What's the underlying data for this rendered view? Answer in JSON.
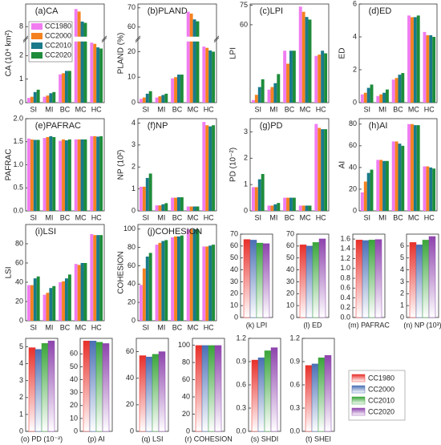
{
  "chart_data": [
    {
      "type": "bar",
      "title": "(a)CA",
      "ylabel": "CA (10⁴ km²)",
      "categories": [
        "SI",
        "MI",
        "BC",
        "MC",
        "HC"
      ],
      "ylim": [
        0,
        8.9
      ],
      "ybreak": [
        2.6,
        7.6
      ],
      "yticks": [
        0,
        1,
        2,
        8
      ],
      "series": [
        {
          "name": "CC1980",
          "color": "#f07cf0",
          "values": [
            0.2,
            0.25,
            1.2,
            8.7,
            2.55
          ]
        },
        {
          "name": "CC2000",
          "color": "#f58220",
          "values": [
            0.25,
            0.3,
            1.25,
            8.6,
            2.5
          ]
        },
        {
          "name": "CC2010",
          "color": "#1a7a8a",
          "values": [
            0.45,
            0.4,
            1.35,
            8.2,
            2.35
          ]
        },
        {
          "name": "CC2020",
          "color": "#1e8c3a",
          "values": [
            0.55,
            0.45,
            1.35,
            8.15,
            2.3
          ]
        }
      ]
    },
    {
      "type": "bar",
      "title": "(b)PLAND",
      "ylabel": "PLAND (%)",
      "categories": [
        "SI",
        "MI",
        "BC",
        "MC",
        "HC"
      ],
      "ylim": [
        0,
        72
      ],
      "ybreak": [
        24,
        55
      ],
      "yticks": [
        0,
        10,
        20,
        60,
        70
      ],
      "series": [
        {
          "color": "#f07cf0",
          "values": [
            1.5,
            2,
            9.5,
            68,
            22
          ]
        },
        {
          "color": "#f58220",
          "values": [
            2,
            2.5,
            10,
            67,
            21.5
          ]
        },
        {
          "color": "#1a7a8a",
          "values": [
            3.5,
            3,
            11,
            64,
            20.5
          ]
        },
        {
          "color": "#1e8c3a",
          "values": [
            4.5,
            3.5,
            11,
            63,
            20
          ]
        }
      ]
    },
    {
      "type": "bar",
      "title": "(c)LPI",
      "ylabel": "LPI",
      "categories": [
        "SI",
        "MI",
        "BC",
        "MC",
        "HC"
      ],
      "ylim": [
        0,
        76
      ],
      "yticks": [
        60,
        75
      ],
      "series": [
        {
          "color": "#f07cf0",
          "values": [
            2,
            10,
            40,
            74,
            36
          ]
        },
        {
          "color": "#f58220",
          "values": [
            6,
            12,
            30,
            70,
            37
          ]
        },
        {
          "color": "#1a7a8a",
          "values": [
            12,
            15,
            40,
            66,
            40
          ]
        },
        {
          "color": "#1e8c3a",
          "values": [
            18,
            22,
            40,
            64,
            38
          ]
        }
      ]
    },
    {
      "type": "bar",
      "title": "(d)ED",
      "ylabel": "ED",
      "categories": [
        "SI",
        "MI",
        "BC",
        "MC",
        "HC"
      ],
      "ylim": [
        0,
        6
      ],
      "yticks": [
        0,
        2,
        4,
        6
      ],
      "series": [
        {
          "color": "#f07cf0",
          "values": [
            0.5,
            0.4,
            1.4,
            5.3,
            4.3
          ]
        },
        {
          "color": "#f58220",
          "values": [
            0.6,
            0.5,
            1.5,
            5.2,
            4.1
          ]
        },
        {
          "color": "#1a7a8a",
          "values": [
            0.9,
            0.6,
            1.7,
            5.2,
            4.1
          ]
        },
        {
          "color": "#1e8c3a",
          "values": [
            1.1,
            0.8,
            1.8,
            5.3,
            4.0
          ]
        }
      ]
    },
    {
      "type": "bar",
      "title": "(e)PAFRAC",
      "ylabel": "PAFRAC",
      "categories": [
        "SI",
        "MI",
        "BC",
        "MC",
        "HC"
      ],
      "ylim": [
        0,
        2
      ],
      "yticks": [
        {
          "value": 0,
          "label": "0.0"
        },
        0.5,
        {
          "value": 1,
          "label": "1.0"
        },
        1.5,
        {
          "value": 2,
          "label": "2.0"
        }
      ],
      "series": [
        {
          "color": "#f07cf0",
          "values": [
            1.57,
            1.58,
            1.52,
            1.55,
            1.62
          ]
        },
        {
          "color": "#f58220",
          "values": [
            1.55,
            1.6,
            1.55,
            1.55,
            1.62
          ]
        },
        {
          "color": "#1a7a8a",
          "values": [
            1.54,
            1.62,
            1.53,
            1.55,
            1.61
          ]
        },
        {
          "color": "#1e8c3a",
          "values": [
            1.54,
            1.6,
            1.55,
            1.55,
            1.62
          ]
        }
      ]
    },
    {
      "type": "bar",
      "title": "(f)NP",
      "ylabel": "NP (10²)",
      "categories": [
        "SI",
        "MI",
        "BC",
        "MC",
        "HC"
      ],
      "ylim": [
        0,
        4.2
      ],
      "yticks": [
        0,
        1,
        2,
        3,
        4
      ],
      "series": [
        {
          "color": "#f07cf0",
          "values": [
            1.1,
            0.25,
            0.6,
            0.2,
            4.05
          ]
        },
        {
          "color": "#f58220",
          "values": [
            1.1,
            0.25,
            0.6,
            0.2,
            3.9
          ]
        },
        {
          "color": "#1a7a8a",
          "values": [
            1.5,
            0.3,
            0.62,
            0.2,
            3.85
          ]
        },
        {
          "color": "#1e8c3a",
          "values": [
            1.7,
            0.35,
            0.62,
            0.2,
            3.9
          ]
        }
      ]
    },
    {
      "type": "bar",
      "title": "(g)PD",
      "ylabel": "PD (10⁻²)",
      "categories": [
        "SI",
        "MI",
        "BC",
        "MC",
        "HC"
      ],
      "ylim": [
        0,
        3.5
      ],
      "yticks": [
        0,
        1,
        2,
        3
      ],
      "series": [
        {
          "color": "#f07cf0",
          "values": [
            0.9,
            0.2,
            0.5,
            0.2,
            3.3
          ]
        },
        {
          "color": "#f58220",
          "values": [
            0.9,
            0.2,
            0.5,
            0.2,
            3.15
          ]
        },
        {
          "color": "#1a7a8a",
          "values": [
            1.2,
            0.25,
            0.5,
            0.2,
            3.1
          ]
        },
        {
          "color": "#1e8c3a",
          "values": [
            1.4,
            0.3,
            0.5,
            0.2,
            3.1
          ]
        }
      ]
    },
    {
      "type": "bar",
      "title": "(h)AI",
      "ylabel": "AI",
      "categories": [
        "SI",
        "MI",
        "BC",
        "MC",
        "HC"
      ],
      "ylim": [
        0,
        85
      ],
      "yticks": [
        0,
        20,
        40,
        60,
        80
      ],
      "series": [
        {
          "color": "#f07cf0",
          "values": [
            17,
            47,
            64,
            80,
            41
          ]
        },
        {
          "color": "#f58220",
          "values": [
            27,
            47,
            64,
            80,
            41
          ]
        },
        {
          "color": "#1a7a8a",
          "values": [
            35,
            46,
            62,
            79,
            40
          ]
        },
        {
          "color": "#1e8c3a",
          "values": [
            38,
            46,
            60,
            79,
            39
          ]
        }
      ]
    },
    {
      "type": "bar",
      "title": "(i)LSI",
      "ylabel": "LSI",
      "categories": [
        "SI",
        "MI",
        "BC",
        "MC",
        "HC"
      ],
      "ylim": [
        0,
        100
      ],
      "yticks": [
        0,
        20,
        40,
        60,
        80
      ],
      "series": [
        {
          "color": "#f07cf0",
          "values": [
            37,
            27,
            40,
            59,
            90
          ]
        },
        {
          "color": "#f58220",
          "values": [
            37,
            29,
            41,
            58,
            89
          ]
        },
        {
          "color": "#1a7a8a",
          "values": [
            44,
            34,
            44,
            60,
            89
          ]
        },
        {
          "color": "#1e8c3a",
          "values": [
            46,
            36,
            48,
            60,
            89
          ]
        }
      ]
    },
    {
      "type": "bar",
      "title": "(j)COHESION",
      "ylabel": "COHESION",
      "categories": [
        "SI",
        "MI",
        "BC",
        "MC",
        "HC"
      ],
      "ylim": [
        0,
        105
      ],
      "yticks": [
        0,
        20,
        40,
        60,
        80,
        100
      ],
      "series": [
        {
          "color": "#f07cf0",
          "values": [
            39,
            83,
            91,
            99.8,
            81
          ]
        },
        {
          "color": "#f58220",
          "values": [
            57,
            85,
            92,
            99.8,
            81
          ]
        },
        {
          "color": "#1a7a8a",
          "values": [
            70,
            87,
            92,
            99.8,
            82
          ]
        },
        {
          "color": "#1e8c3a",
          "values": [
            74,
            88,
            93,
            99.8,
            83
          ]
        }
      ]
    },
    {
      "type": "bar",
      "xlabel": "(k) LPI",
      "ylim": [
        0,
        70
      ],
      "yticks": [
        0,
        10,
        20,
        30,
        40,
        50,
        60,
        70
      ],
      "values": [
        65.5,
        65,
        62.5,
        62
      ]
    },
    {
      "type": "bar",
      "xlabel": "(l) ED",
      "ylim": [
        0,
        70
      ],
      "yticks": [
        0,
        10,
        20,
        30,
        40,
        50,
        60,
        70
      ],
      "values": [
        61,
        60,
        63,
        66
      ]
    },
    {
      "type": "bar",
      "xlabel": "(m) PAFRAC",
      "ylim": [
        0,
        1.7
      ],
      "yticks": [
        {
          "value": 0,
          "label": "0.0"
        },
        0.2,
        0.4,
        0.6,
        0.8,
        {
          "value": 1,
          "label": "1.0"
        },
        1.2,
        1.4,
        1.6
      ],
      "values": [
        1.58,
        1.57,
        1.58,
        1.59
      ]
    },
    {
      "type": "bar",
      "xlabel": "(n) NP (10³)",
      "ylim": [
        0,
        7
      ],
      "yticks": [
        0,
        1,
        2,
        3,
        4,
        5,
        6
      ],
      "values": [
        6.3,
        6.1,
        6.5,
        6.8
      ]
    },
    {
      "type": "bar",
      "xlabel": "(o) PD (10⁻²)",
      "ylim": [
        0,
        5.5
      ],
      "yticks": [
        0,
        1,
        2,
        3,
        4,
        5
      ],
      "values": [
        4.95,
        4.85,
        5.2,
        5.35
      ]
    },
    {
      "type": "bar",
      "xlabel": "(p) AI",
      "ylim": [
        0,
        72
      ],
      "yticks": [
        0,
        10,
        20,
        30,
        40,
        50,
        60
      ],
      "values": [
        70,
        70,
        69,
        68
      ]
    },
    {
      "type": "bar",
      "xlabel": "(q) LSI",
      "ylim": [
        0,
        70
      ],
      "yticks": [
        0,
        20,
        40,
        60
      ],
      "values": [
        57,
        56,
        58,
        60
      ]
    },
    {
      "type": "bar",
      "xlabel": "(r) COHESION",
      "ylim": [
        0,
        108
      ],
      "yticks": [
        0,
        20,
        40,
        60,
        80,
        100
      ],
      "values": [
        99.7,
        99.7,
        99.7,
        99.7
      ]
    },
    {
      "type": "bar",
      "xlabel": "(s) SHDI",
      "ylim": [
        0,
        1.2
      ],
      "yticks": [
        {
          "value": 0,
          "label": "0.0"
        },
        0.3,
        0.6,
        0.9,
        1.2
      ],
      "values": [
        0.92,
        0.95,
        1.04,
        1.08
      ]
    },
    {
      "type": "bar",
      "xlabel": "(t) SHEI",
      "ylim": [
        0,
        1.2
      ],
      "yticks": [
        {
          "value": 0,
          "label": "0.0"
        },
        0.3,
        0.6,
        0.9,
        1.2
      ],
      "values": [
        0.85,
        0.87,
        0.95,
        0.98
      ]
    }
  ],
  "legend": [
    {
      "name": "CC1980",
      "color": "#e8302a"
    },
    {
      "name": "CC2000",
      "color": "#4a6fb5"
    },
    {
      "name": "CC2010",
      "color": "#3aa53a"
    },
    {
      "name": "CC2020",
      "color": "#8e44ad"
    }
  ]
}
